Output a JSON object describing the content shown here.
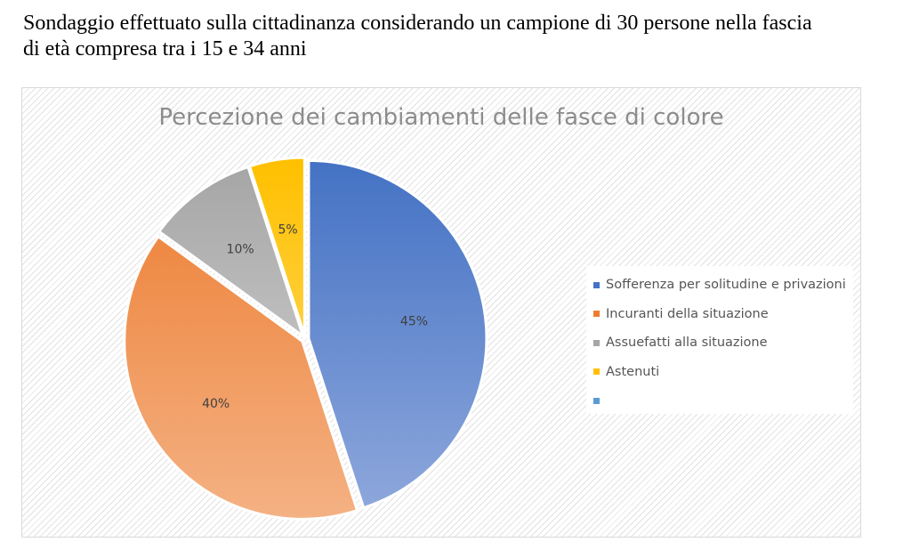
{
  "heading": {
    "line1": "Sondaggio effettuato sulla cittadinanza considerando un campione di 30 persone nella fascia",
    "line2": "di età compresa tra i 15 e 34 anni"
  },
  "chart_data": {
    "type": "pie",
    "title": "Percezione dei cambiamenti delle fasce di colore",
    "slices": [
      {
        "label": "Sofferenza per solitudine e privazioni",
        "value": 45,
        "data_label": "45%",
        "color": "#4472c4",
        "color_light": "#8fa8dc"
      },
      {
        "label": "Incuranti della situazione",
        "value": 40,
        "data_label": "40%",
        "color": "#ed7d31",
        "color_light": "#f4b183"
      },
      {
        "label": "Assuefatti alla situazione",
        "value": 10,
        "data_label": "10%",
        "color": "#a5a5a5",
        "color_light": "#d9d9d9"
      },
      {
        "label": "Astenuti",
        "value": 5,
        "data_label": "5%",
        "color": "#ffc000",
        "color_light": "#ffe07a"
      }
    ],
    "legend_extra": [
      {
        "label": "",
        "color": "#5b9bd5"
      }
    ],
    "legend_position": "right"
  }
}
